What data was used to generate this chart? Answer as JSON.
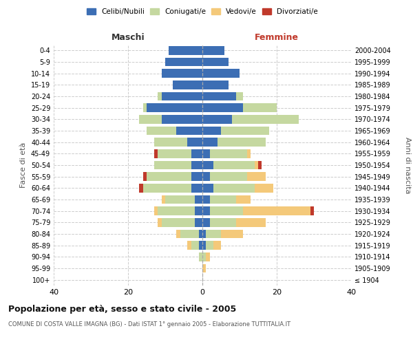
{
  "age_groups": [
    "100+",
    "95-99",
    "90-94",
    "85-89",
    "80-84",
    "75-79",
    "70-74",
    "65-69",
    "60-64",
    "55-59",
    "50-54",
    "45-49",
    "40-44",
    "35-39",
    "30-34",
    "25-29",
    "20-24",
    "15-19",
    "10-14",
    "5-9",
    "0-4"
  ],
  "birth_years": [
    "≤ 1904",
    "1905-1909",
    "1910-1914",
    "1915-1919",
    "1920-1924",
    "1925-1929",
    "1930-1934",
    "1935-1939",
    "1940-1944",
    "1945-1949",
    "1950-1954",
    "1955-1959",
    "1960-1964",
    "1965-1969",
    "1970-1974",
    "1975-1979",
    "1980-1984",
    "1985-1989",
    "1990-1994",
    "1995-1999",
    "2000-2004"
  ],
  "maschi": {
    "celibi": [
      0,
      0,
      0,
      1,
      1,
      2,
      2,
      2,
      3,
      3,
      3,
      3,
      4,
      7,
      11,
      15,
      11,
      8,
      11,
      10,
      9
    ],
    "coniugati": [
      0,
      0,
      1,
      2,
      5,
      9,
      10,
      8,
      13,
      12,
      10,
      9,
      9,
      8,
      6,
      1,
      1,
      0,
      0,
      0,
      0
    ],
    "vedovi": [
      0,
      0,
      0,
      1,
      1,
      1,
      1,
      1,
      0,
      0,
      0,
      0,
      0,
      0,
      0,
      0,
      0,
      0,
      0,
      0,
      0
    ],
    "divorziati": [
      0,
      0,
      0,
      0,
      0,
      0,
      0,
      0,
      1,
      1,
      0,
      1,
      0,
      0,
      0,
      0,
      0,
      0,
      0,
      0,
      0
    ]
  },
  "femmine": {
    "nubili": [
      0,
      0,
      0,
      1,
      1,
      2,
      2,
      2,
      3,
      2,
      3,
      2,
      4,
      5,
      8,
      11,
      9,
      7,
      10,
      7,
      6
    ],
    "coniugate": [
      0,
      0,
      1,
      2,
      4,
      7,
      9,
      7,
      11,
      10,
      11,
      10,
      13,
      13,
      18,
      9,
      2,
      0,
      0,
      0,
      0
    ],
    "vedove": [
      0,
      1,
      1,
      2,
      6,
      8,
      18,
      4,
      5,
      5,
      1,
      1,
      0,
      0,
      0,
      0,
      0,
      0,
      0,
      0,
      0
    ],
    "divorziate": [
      0,
      0,
      0,
      0,
      0,
      0,
      1,
      0,
      0,
      0,
      1,
      0,
      0,
      0,
      0,
      0,
      0,
      0,
      0,
      0,
      0
    ]
  },
  "colors": {
    "celibi": "#3c6eb4",
    "coniugati": "#c5d8a0",
    "vedovi": "#f4c97a",
    "divorziati": "#c0392b"
  },
  "xlim": 40,
  "title": "Popolazione per età, sesso e stato civile - 2005",
  "subtitle": "COMUNE DI COSTA VALLE IMAGNA (BG) - Dati ISTAT 1° gennaio 2005 - Elaborazione TUTTITALIA.IT",
  "ylabel_left": "Fasce di età",
  "ylabel_right": "Anni di nascita",
  "xlabel_left": "Maschi",
  "xlabel_right": "Femmine",
  "legend_labels": [
    "Celibi/Nubili",
    "Coniugati/e",
    "Vedovi/e",
    "Divorziati/e"
  ]
}
